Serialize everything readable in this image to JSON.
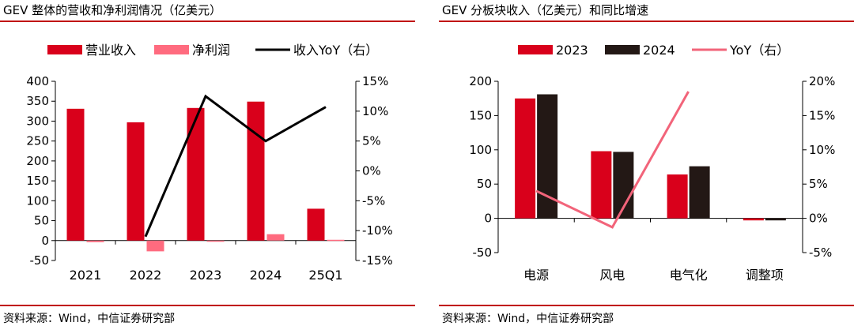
{
  "chart_data": [
    {
      "type": "bar",
      "title": "GEV 整体的营收和净利润情况（亿美元）",
      "source": "资料来源：Wind，中信证券研究部",
      "categories": [
        "2021",
        "2022",
        "2023",
        "2024",
        "25Q1"
      ],
      "series": [
        {
          "name": "营业收入",
          "kind": "bar",
          "axis": "left",
          "color": "#d9001b",
          "values": [
            331,
            297,
            333,
            349,
            80
          ]
        },
        {
          "name": "净利润",
          "kind": "bar",
          "axis": "left",
          "color": "#ff6b7f",
          "values": [
            -4,
            -27,
            -3,
            16,
            2
          ]
        },
        {
          "name": "收入YoY（右）",
          "kind": "line",
          "axis": "right",
          "color": "#000000",
          "values": [
            null,
            -11,
            12.5,
            5,
            10.7
          ]
        }
      ],
      "ylim": [
        -50,
        400
      ],
      "yticks": [
        "400",
        "350",
        "300",
        "250",
        "200",
        "150",
        "100",
        "50",
        "0",
        "-50"
      ],
      "y2lim": [
        -15,
        15
      ],
      "y2ticks": [
        "15%",
        "10%",
        "5%",
        "0%",
        "-5%",
        "-10%",
        "-15%"
      ],
      "legend": "top"
    },
    {
      "type": "bar",
      "title": "GEV 分板块收入（亿美元）和同比增速",
      "source": "资料来源：Wind，中信证券研究部",
      "categories": [
        "电源",
        "风电",
        "电气化",
        "调整项"
      ],
      "series": [
        {
          "name": "2023",
          "kind": "bar",
          "axis": "left",
          "color": "#d9001b",
          "values": [
            175,
            98,
            64,
            -3
          ]
        },
        {
          "name": "2024",
          "kind": "bar",
          "axis": "left",
          "color": "#231815",
          "values": [
            181,
            97,
            76,
            -3
          ]
        },
        {
          "name": "YoY（右）",
          "kind": "line",
          "axis": "right",
          "color": "#f2647a",
          "values": [
            4,
            -1.3,
            18.5,
            null
          ]
        }
      ],
      "ylim": [
        -50,
        200
      ],
      "yticks": [
        "200",
        "150",
        "100",
        "50",
        "0",
        "-50"
      ],
      "y2lim": [
        -5,
        20
      ],
      "y2ticks": [
        "20%",
        "15%",
        "10%",
        "5%",
        "0%",
        "-5%"
      ],
      "legend": "top"
    }
  ]
}
